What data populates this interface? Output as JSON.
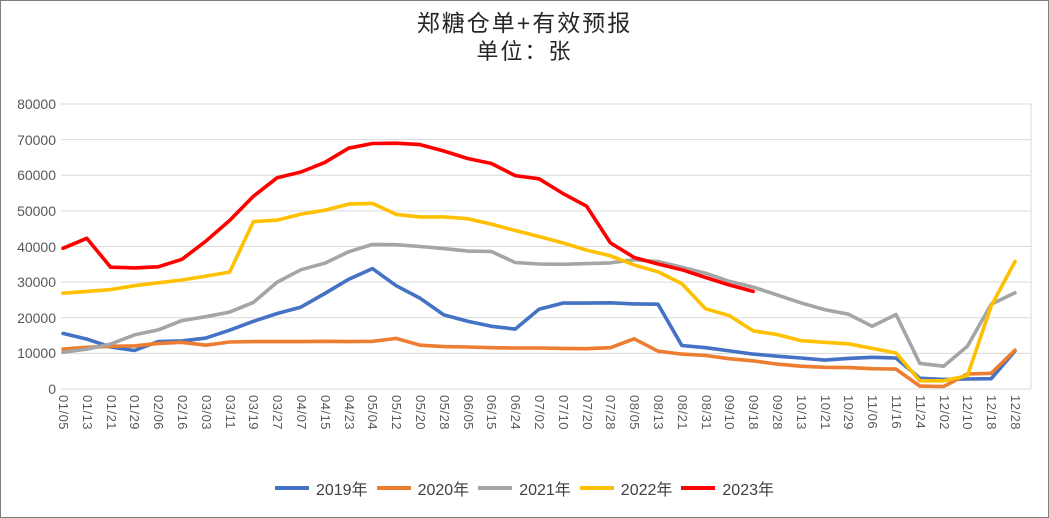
{
  "chart_data": {
    "type": "line",
    "title": "郑糖仓单+有效预报",
    "subtitle": "单位：张",
    "unit": "张",
    "ylim": [
      0,
      80000
    ],
    "y_ticks": [
      0,
      10000,
      20000,
      30000,
      40000,
      50000,
      60000,
      70000,
      80000
    ],
    "grid": "horizontal",
    "legend_position": "bottom",
    "gridline_color": "#D9D9D9",
    "axis_text_color": "#595959",
    "title_color": "#262626",
    "x_ticks": [
      "01/05",
      "01/13",
      "01/21",
      "01/29",
      "02/06",
      "02/16",
      "03/03",
      "03/11",
      "03/19",
      "03/27",
      "04/07",
      "04/15",
      "04/23",
      "05/04",
      "05/12",
      "05/20",
      "05/28",
      "06/05",
      "06/15",
      "06/24",
      "07/02",
      "07/10",
      "07/20",
      "07/28",
      "08/05",
      "08/13",
      "08/21",
      "08/31",
      "09/10",
      "09/18",
      "09/28",
      "10/13",
      "10/21",
      "10/29",
      "11/06",
      "11/16",
      "11/24",
      "12/02",
      "12/10",
      "12/18",
      "12/28"
    ],
    "series": [
      {
        "name": "2019年",
        "color": "#4472C4",
        "values": [
          15600,
          14000,
          11800,
          10800,
          13300,
          13500,
          14300,
          16500,
          19000,
          21200,
          23000,
          26800,
          30800,
          33800,
          29000,
          25500,
          20800,
          19000,
          17600,
          16800,
          22400,
          24100,
          24100,
          24200,
          23900,
          23800,
          12200,
          11600,
          10700,
          9800,
          9200,
          8700,
          8100,
          8600,
          8900,
          8700,
          3000,
          2700,
          2800,
          2900,
          10700
        ]
      },
      {
        "name": "2020年",
        "color": "#ED7D31",
        "values": [
          11200,
          11700,
          12000,
          12100,
          12800,
          13100,
          12300,
          13200,
          13300,
          13300,
          13300,
          13400,
          13300,
          13400,
          14200,
          12300,
          11900,
          11800,
          11600,
          11500,
          11500,
          11400,
          11300,
          11600,
          14100,
          10600,
          9800,
          9400,
          8500,
          7900,
          7000,
          6400,
          6100,
          6000,
          5700,
          5600,
          800,
          700,
          4200,
          4400,
          10900
        ]
      },
      {
        "name": "2021年",
        "color": "#A5A5A5",
        "values": [
          10300,
          11200,
          12600,
          15200,
          16600,
          19200,
          20300,
          21600,
          24300,
          30000,
          33500,
          35300,
          38500,
          40600,
          40500,
          40000,
          39400,
          38700,
          38600,
          35500,
          35100,
          35000,
          35200,
          35400,
          36300,
          35800,
          34200,
          32500,
          30200,
          28600,
          26400,
          24200,
          22300,
          21000,
          17600,
          20900,
          7200,
          6400,
          12000,
          23800,
          27000
        ]
      },
      {
        "name": "2022年",
        "color": "#FFC000",
        "values": [
          26900,
          27400,
          27900,
          29000,
          29800,
          30600,
          31700,
          32800,
          47000,
          47400,
          49100,
          50200,
          51900,
          52100,
          49000,
          48300,
          48300,
          47800,
          46300,
          44500,
          42800,
          41000,
          39000,
          37400,
          34800,
          32900,
          29600,
          22500,
          20600,
          16300,
          15300,
          13600,
          13100,
          12700,
          11400,
          10100,
          2300,
          2300,
          3700,
          23300,
          35800
        ]
      },
      {
        "name": "2023年",
        "color": "#FF0000",
        "values": [
          39500,
          42300,
          34200,
          34000,
          34300,
          36400,
          41500,
          47300,
          54100,
          59300,
          60900,
          63600,
          67600,
          68900,
          69000,
          68600,
          66800,
          64700,
          63300,
          59900,
          59000,
          54900,
          51300,
          41000,
          36900,
          35100,
          33500,
          31300,
          29200,
          27400,
          null,
          null,
          null,
          null,
          null,
          null,
          null,
          null,
          null,
          null,
          null
        ]
      }
    ]
  }
}
